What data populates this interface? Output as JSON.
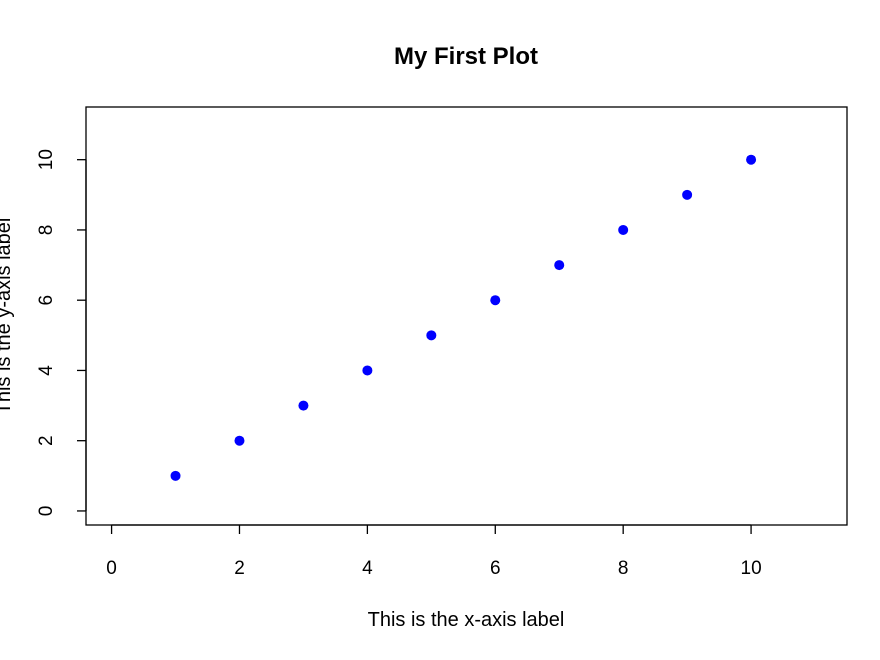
{
  "chart_data": {
    "type": "scatter",
    "title": "My First Plot",
    "xlabel": "This is the x-axis label",
    "ylabel": "This is the y-axis label",
    "x": [
      1,
      2,
      3,
      4,
      5,
      6,
      7,
      8,
      9,
      10
    ],
    "y": [
      1,
      2,
      3,
      4,
      5,
      6,
      7,
      8,
      9,
      10
    ],
    "xlim": [
      -0.4,
      11.5
    ],
    "ylim": [
      -0.4,
      11.5
    ],
    "xticks": [
      0,
      2,
      4,
      6,
      8,
      10
    ],
    "yticks": [
      0,
      2,
      4,
      6,
      8,
      10
    ],
    "grid": false,
    "point_color": "#0000ff"
  }
}
